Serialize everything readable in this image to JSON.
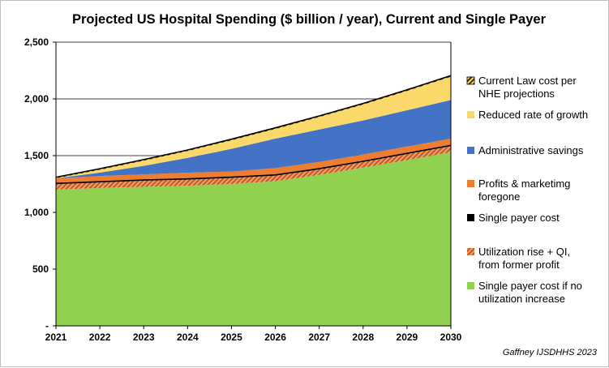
{
  "chart_data": {
    "type": "area",
    "title": "Projected US Hospital Spending ($ billion / year), Current and Single Payer",
    "x": [
      2021,
      2022,
      2023,
      2024,
      2025,
      2026,
      2027,
      2028,
      2029,
      2030
    ],
    "x_tick_labels": [
      "2021",
      "2022",
      "2023",
      "2024",
      "2025",
      "2026",
      "2027",
      "2028",
      "2029",
      "2030"
    ],
    "ylim": [
      0,
      2500
    ],
    "y_ticks": [
      0,
      500,
      1000,
      1500,
      2000,
      2500
    ],
    "y_tick_labels": [
      "-",
      "500",
      "1,000",
      "1,500",
      "2,000",
      "2,500"
    ],
    "grid": true,
    "legend_position": "right",
    "series": [
      {
        "name": "Current Law cost per NHE projections",
        "color": "#000000",
        "pattern": "hatch-yellow",
        "values": [
          1310,
          1385,
          1465,
          1550,
          1645,
          1745,
          1850,
          1960,
          2080,
          2205
        ]
      },
      {
        "name": "Reduced rate of growth",
        "color": "#fbd86a",
        "values": [
          1300,
          1375,
          1455,
          1540,
          1635,
          1735,
          1840,
          1950,
          2070,
          2195
        ]
      },
      {
        "name": "Administrative savings",
        "color": "#4472c4",
        "values": [
          1300,
          1350,
          1410,
          1480,
          1560,
          1650,
          1730,
          1810,
          1900,
          1990
        ]
      },
      {
        "name": "Profits & marketimg foregone",
        "color": "#ed7d31",
        "values": [
          1300,
          1320,
          1335,
          1350,
          1360,
          1390,
          1445,
          1510,
          1580,
          1650
        ]
      },
      {
        "name": "Single payer cost",
        "color": "#000000",
        "values": [
          1255,
          1270,
          1285,
          1295,
          1310,
          1330,
          1385,
          1450,
          1520,
          1590
        ]
      },
      {
        "name": "Utilization rise + QI, from former profit",
        "color": "#d97a40",
        "pattern": "hatch-orange",
        "values": [
          1250,
          1265,
          1280,
          1290,
          1305,
          1325,
          1380,
          1445,
          1515,
          1585
        ]
      },
      {
        "name": "Single payer cost if no utilization increase",
        "color": "#92d050",
        "values": [
          1200,
          1215,
          1225,
          1235,
          1250,
          1275,
          1330,
          1395,
          1460,
          1530
        ]
      }
    ],
    "annotation": "Gaffney IJSDHHS 2023"
  },
  "legend": [
    {
      "lines": [
        "Current Law cost per",
        "NHE projections"
      ],
      "swatch": "hatch-yellow"
    },
    {
      "lines": [
        "Reduced rate of growth"
      ],
      "swatch": "#fbd86a"
    },
    {
      "lines": [
        "Administrative savings"
      ],
      "swatch": "#4472c4"
    },
    {
      "lines": [
        "Profits & marketimg",
        "foregone"
      ],
      "swatch": "#ed7d31"
    },
    {
      "lines": [
        "Single payer cost"
      ],
      "swatch": "#000000"
    },
    {
      "lines": [
        "Utilization rise + QI,",
        "from former profit"
      ],
      "swatch": "hatch-orange"
    },
    {
      "lines": [
        "Single payer cost if no",
        "utilization increase"
      ],
      "swatch": "#92d050"
    }
  ]
}
